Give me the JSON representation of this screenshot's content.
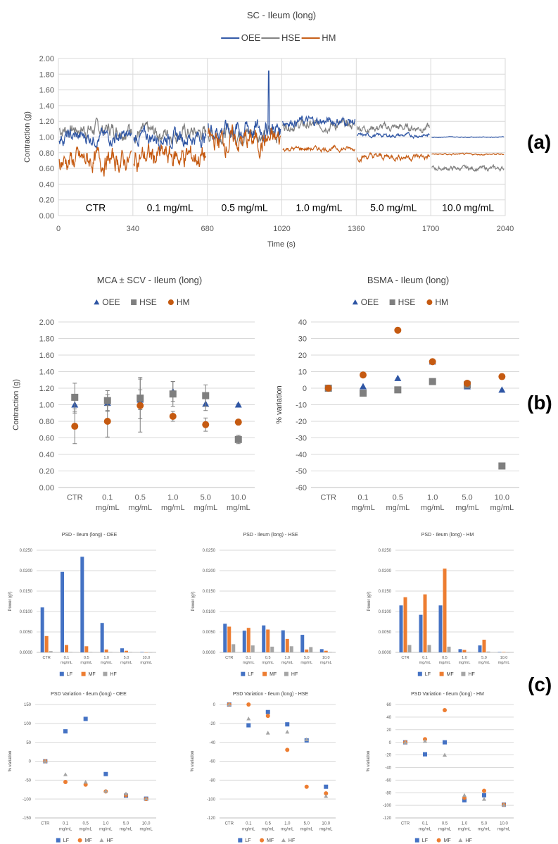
{
  "panel_labels": {
    "a": "(a)",
    "b": "(b)",
    "c": "(c)"
  },
  "colors": {
    "OEE": "#2e55a4",
    "HSE": "#7f7f7f",
    "HM": "#c55a11",
    "LF": "#4472c4",
    "MF": "#ed7d31",
    "HF": "#a5a5a5"
  },
  "chart_data": [
    {
      "id": "sc",
      "type": "line",
      "title": "SC - Ileum (long)",
      "xlabel": "Time (s)",
      "ylabel": "Contraction (g)",
      "xlim": [
        0,
        2040
      ],
      "ylim": [
        0,
        2
      ],
      "xticks": [
        "0",
        "340",
        "680",
        "1020",
        "1360",
        "1700",
        "2040"
      ],
      "yticks": [
        "0.00",
        "0.20",
        "0.40",
        "0.60",
        "0.80",
        "1.00",
        "1.20",
        "1.40",
        "1.60",
        "1.80",
        "2.00"
      ],
      "segments": [
        "CTR",
        "0.1 mg/mL",
        "0.5 mg/mL",
        "1.0 mg/mL",
        "5.0 mg/mL",
        "10.0 mg/mL"
      ],
      "legend": [
        "OEE",
        "HSE",
        "HM"
      ],
      "series": [
        {
          "name": "OEE",
          "segment_mean": [
            1.0,
            1.0,
            1.1,
            1.2,
            1.02,
            1.0
          ],
          "segment_spread": [
            0.18,
            0.2,
            0.25,
            0.12,
            0.05,
            0.01
          ],
          "spike": {
            "x": 960,
            "y": 1.84
          }
        },
        {
          "name": "HSE",
          "segment_mean": [
            1.1,
            1.05,
            1.05,
            1.15,
            1.12,
            0.6
          ],
          "segment_spread": [
            0.2,
            0.2,
            0.2,
            0.12,
            0.1,
            0.06
          ]
        },
        {
          "name": "HM",
          "segment_mean": [
            0.7,
            0.75,
            0.95,
            0.85,
            0.75,
            0.78
          ],
          "segment_spread": [
            0.28,
            0.3,
            0.3,
            0.06,
            0.08,
            0.02
          ]
        }
      ]
    },
    {
      "id": "mca",
      "type": "scatter",
      "title": "MCA ± SCV - Ileum (long)",
      "ylabel": "Contraction (g)",
      "ylim": [
        0,
        2
      ],
      "yticks": [
        "0.00",
        "0.20",
        "0.40",
        "0.60",
        "0.80",
        "1.00",
        "1.20",
        "1.40",
        "1.60",
        "1.80",
        "2.00"
      ],
      "categories": [
        [
          "CTR"
        ],
        [
          "0.1",
          "mg/mL"
        ],
        [
          "0.5",
          "mg/mL"
        ],
        [
          "1.0",
          "mg/mL"
        ],
        [
          "5.0",
          "mg/mL"
        ],
        [
          "10.0",
          "mg/mL"
        ]
      ],
      "legend": [
        "OEE",
        "HSE",
        "HM"
      ],
      "series": [
        {
          "name": "OEE",
          "marker": "triangle",
          "values": [
            1.0,
            1.02,
            1.06,
            1.16,
            1.01,
            1.0
          ],
          "err": [
            0.1,
            0.1,
            0.12,
            0.12,
            0.08,
            0.01
          ]
        },
        {
          "name": "HSE",
          "marker": "square",
          "values": [
            1.09,
            1.05,
            1.08,
            1.13,
            1.11,
            0.58
          ],
          "err": [
            0.17,
            0.12,
            0.25,
            0.15,
            0.13,
            0.05
          ]
        },
        {
          "name": "HM",
          "marker": "circle",
          "values": [
            0.74,
            0.8,
            0.99,
            0.86,
            0.76,
            0.79
          ],
          "err": [
            0.21,
            0.19,
            0.32,
            0.06,
            0.08,
            0.02
          ]
        }
      ]
    },
    {
      "id": "bsma",
      "type": "scatter",
      "title": "BSMA - Ileum (long)",
      "ylabel": "% variation",
      "ylim": [
        -60,
        40
      ],
      "yticks": [
        "40",
        "30",
        "20",
        "10",
        "0",
        "-10",
        "-20",
        "-30",
        "-40",
        "-50",
        "-60"
      ],
      "categories": [
        [
          "CTR"
        ],
        [
          "0.1",
          "mg/mL"
        ],
        [
          "0.5",
          "mg/mL"
        ],
        [
          "1.0",
          "mg/mL"
        ],
        [
          "5.0",
          "mg/mL"
        ],
        [
          "10.0",
          "mg/mL"
        ]
      ],
      "legend": [
        "OEE",
        "HSE",
        "HM"
      ],
      "series": [
        {
          "name": "OEE",
          "marker": "triangle",
          "values": [
            0,
            1,
            6,
            16,
            1,
            -1
          ]
        },
        {
          "name": "HSE",
          "marker": "square",
          "values": [
            0,
            -3,
            -1,
            4,
            2,
            -47
          ]
        },
        {
          "name": "HM",
          "marker": "circle",
          "values": [
            0,
            8,
            35,
            16,
            3,
            7
          ]
        }
      ]
    },
    {
      "id": "psd_oee",
      "type": "bar",
      "title": "PSD - Ileum (long) - OEE",
      "ylabel": "Power (g²)",
      "ylim": [
        0,
        0.025
      ],
      "yticks": [
        "0.0000",
        "0.0050",
        "0.0100",
        "0.0150",
        "0.0200",
        "0.0250"
      ],
      "categories": [
        [
          "CTR"
        ],
        [
          "0.1",
          "mg/mL"
        ],
        [
          "0.5",
          "mg/mL"
        ],
        [
          "1.0",
          "mg/mL"
        ],
        [
          "5.0",
          "mg/mL"
        ],
        [
          "10.0",
          "mg/mL"
        ]
      ],
      "legend": [
        "LF",
        "MF",
        "HF"
      ],
      "series": [
        {
          "name": "LF",
          "values": [
            0.011,
            0.0197,
            0.0234,
            0.0072,
            0.001,
            0.0001
          ]
        },
        {
          "name": "MF",
          "values": [
            0.004,
            0.0018,
            0.0015,
            0.0007,
            0.0004,
            0.0
          ]
        },
        {
          "name": "HF",
          "values": [
            0.0003,
            0.0001,
            0.0001,
            0.0001,
            0.0001,
            0.0
          ]
        }
      ]
    },
    {
      "id": "psd_hse",
      "type": "bar",
      "title": "PSD - Ileum (long) - HSE",
      "ylabel": "Power (g²)",
      "ylim": [
        0,
        0.025
      ],
      "yticks": [
        "0.0000",
        "0.0050",
        "0.0100",
        "0.0150",
        "0.0200",
        "0.0250"
      ],
      "categories": [
        [
          "CTR"
        ],
        [
          "0.1",
          "mg/mL"
        ],
        [
          "0.5",
          "mg/mL"
        ],
        [
          "1.0",
          "mg/mL"
        ],
        [
          "5.0",
          "mg/mL"
        ],
        [
          "10.0",
          "mg/mL"
        ]
      ],
      "legend": [
        "LF",
        "MF",
        "HF"
      ],
      "series": [
        {
          "name": "LF",
          "values": [
            0.007,
            0.0053,
            0.0066,
            0.0054,
            0.0043,
            0.0008
          ]
        },
        {
          "name": "MF",
          "values": [
            0.0063,
            0.006,
            0.0056,
            0.0033,
            0.0007,
            0.0004
          ]
        },
        {
          "name": "HF",
          "values": [
            0.002,
            0.0017,
            0.0014,
            0.0015,
            0.0013,
            0.0001
          ]
        }
      ]
    },
    {
      "id": "psd_hm",
      "type": "bar",
      "title": "PSD - Ileum (long) - HM",
      "ylabel": "Power (g²)",
      "ylim": [
        0,
        0.025
      ],
      "yticks": [
        "0.0000",
        "0.0050",
        "0.0100",
        "0.0150",
        "0.0200",
        "0.0250"
      ],
      "categories": [
        [
          "CTR"
        ],
        [
          "0.1",
          "mg/mL"
        ],
        [
          "0.5",
          "mg/mL"
        ],
        [
          "1.0",
          "mg/mL"
        ],
        [
          "5.0",
          "mg/mL"
        ],
        [
          "10.0",
          "mg/mL"
        ]
      ],
      "legend": [
        "LF",
        "MF",
        "HF"
      ],
      "series": [
        {
          "name": "LF",
          "values": [
            0.0115,
            0.0092,
            0.0115,
            0.0008,
            0.0017,
            0.0001
          ]
        },
        {
          "name": "MF",
          "values": [
            0.0135,
            0.0142,
            0.0205,
            0.0006,
            0.0031,
            0.0001
          ]
        },
        {
          "name": "HF",
          "values": [
            0.0018,
            0.0018,
            0.0014,
            0.0001,
            0.0002,
            0.0
          ]
        }
      ]
    },
    {
      "id": "var_oee",
      "type": "scatter",
      "title": "PSD Variation - Ileum (long) - OEE",
      "ylabel": "% variation",
      "ylim": [
        -150,
        150
      ],
      "yticks": [
        "150",
        "100",
        "50",
        "0",
        "-50",
        "-100",
        "-150"
      ],
      "categories": [
        [
          "CTR"
        ],
        [
          "0.1",
          "mg/mL"
        ],
        [
          "0.5",
          "mg/mL"
        ],
        [
          "1.0",
          "mg/mL"
        ],
        [
          "5.0",
          "mg/mL"
        ],
        [
          "10.0",
          "mg/mL"
        ]
      ],
      "legend": [
        "LF",
        "MF",
        "HF"
      ],
      "series": [
        {
          "name": "LF",
          "marker": "square",
          "values": [
            0,
            79,
            112,
            -34,
            -91,
            -99
          ]
        },
        {
          "name": "MF",
          "marker": "circle",
          "values": [
            0,
            -55,
            -62,
            -80,
            -90,
            -100
          ]
        },
        {
          "name": "HF",
          "marker": "triangle",
          "values": [
            0,
            -35,
            -55,
            -79,
            -86,
            -99
          ]
        }
      ]
    },
    {
      "id": "var_hse",
      "type": "scatter",
      "title": "PSD Variation - Ileum (long) - HSE",
      "ylabel": "% variation",
      "ylim": [
        -120,
        0
      ],
      "yticks": [
        "0",
        "-20",
        "-40",
        "-60",
        "-80",
        "-100",
        "-120"
      ],
      "categories": [
        [
          "CTR"
        ],
        [
          "0.1",
          "mg/mL"
        ],
        [
          "0.5",
          "mg/mL"
        ],
        [
          "1.0",
          "mg/mL"
        ],
        [
          "5.0",
          "mg/mL"
        ],
        [
          "10.0",
          "mg/mL"
        ]
      ],
      "legend": [
        "LF",
        "MF",
        "HF"
      ],
      "series": [
        {
          "name": "LF",
          "marker": "square",
          "values": [
            0,
            -22,
            -8,
            -21,
            -38,
            -87
          ]
        },
        {
          "name": "MF",
          "marker": "circle",
          "values": [
            0,
            0,
            -12,
            -48,
            -87,
            -94
          ]
        },
        {
          "name": "HF",
          "marker": "triangle",
          "values": [
            0,
            -15,
            -30,
            -29,
            -37,
            -97
          ]
        }
      ]
    },
    {
      "id": "var_hm",
      "type": "scatter",
      "title": "PSD Variation - Ileum (long) - HM",
      "ylabel": "% variation",
      "ylim": [
        -120,
        60
      ],
      "yticks": [
        "60",
        "40",
        "20",
        "0",
        "-20",
        "-40",
        "-60",
        "-80",
        "-100",
        "-120"
      ],
      "categories": [
        [
          "CTR"
        ],
        [
          "0.1",
          "mg/mL"
        ],
        [
          "0.5",
          "mg/mL"
        ],
        [
          "1.0",
          "mg/mL"
        ],
        [
          "5.0",
          "mg/mL"
        ],
        [
          "10.0",
          "mg/mL"
        ]
      ],
      "legend": [
        "LF",
        "MF",
        "HF"
      ],
      "series": [
        {
          "name": "LF",
          "marker": "square",
          "values": [
            0,
            -19,
            0,
            -92,
            -84,
            -99
          ]
        },
        {
          "name": "MF",
          "marker": "circle",
          "values": [
            0,
            5,
            51,
            -88,
            -77,
            -99
          ]
        },
        {
          "name": "HF",
          "marker": "triangle",
          "values": [
            0,
            2,
            -20,
            -84,
            -90,
            -99
          ]
        }
      ]
    }
  ]
}
